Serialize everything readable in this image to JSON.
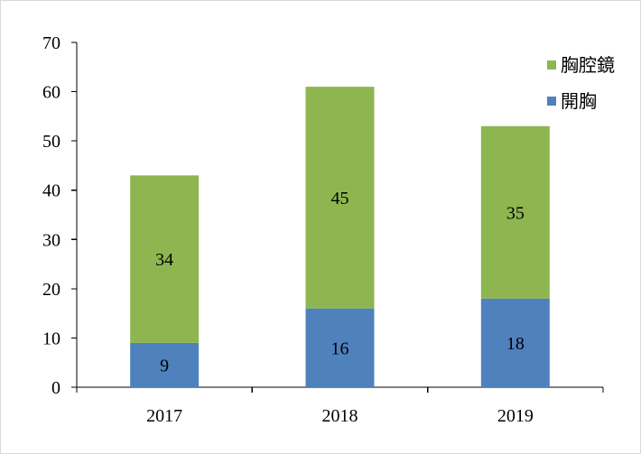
{
  "chart_data": {
    "type": "bar",
    "stacked": true,
    "categories": [
      "2017",
      "2018",
      "2019"
    ],
    "series": [
      {
        "name": "開胸",
        "values": [
          9,
          16,
          18
        ],
        "color": "#4f81bd"
      },
      {
        "name": "胸腔鏡",
        "values": [
          34,
          45,
          35
        ],
        "color": "#8db650"
      }
    ],
    "ylim": [
      0,
      70
    ],
    "yticks": [
      0,
      10,
      20,
      30,
      40,
      50,
      60,
      70
    ],
    "title": "",
    "xlabel": "",
    "ylabel": "",
    "grid": false,
    "legend_position": "top-right",
    "legend_order": [
      "胸腔鏡",
      "開胸"
    ],
    "data_labels": true
  }
}
